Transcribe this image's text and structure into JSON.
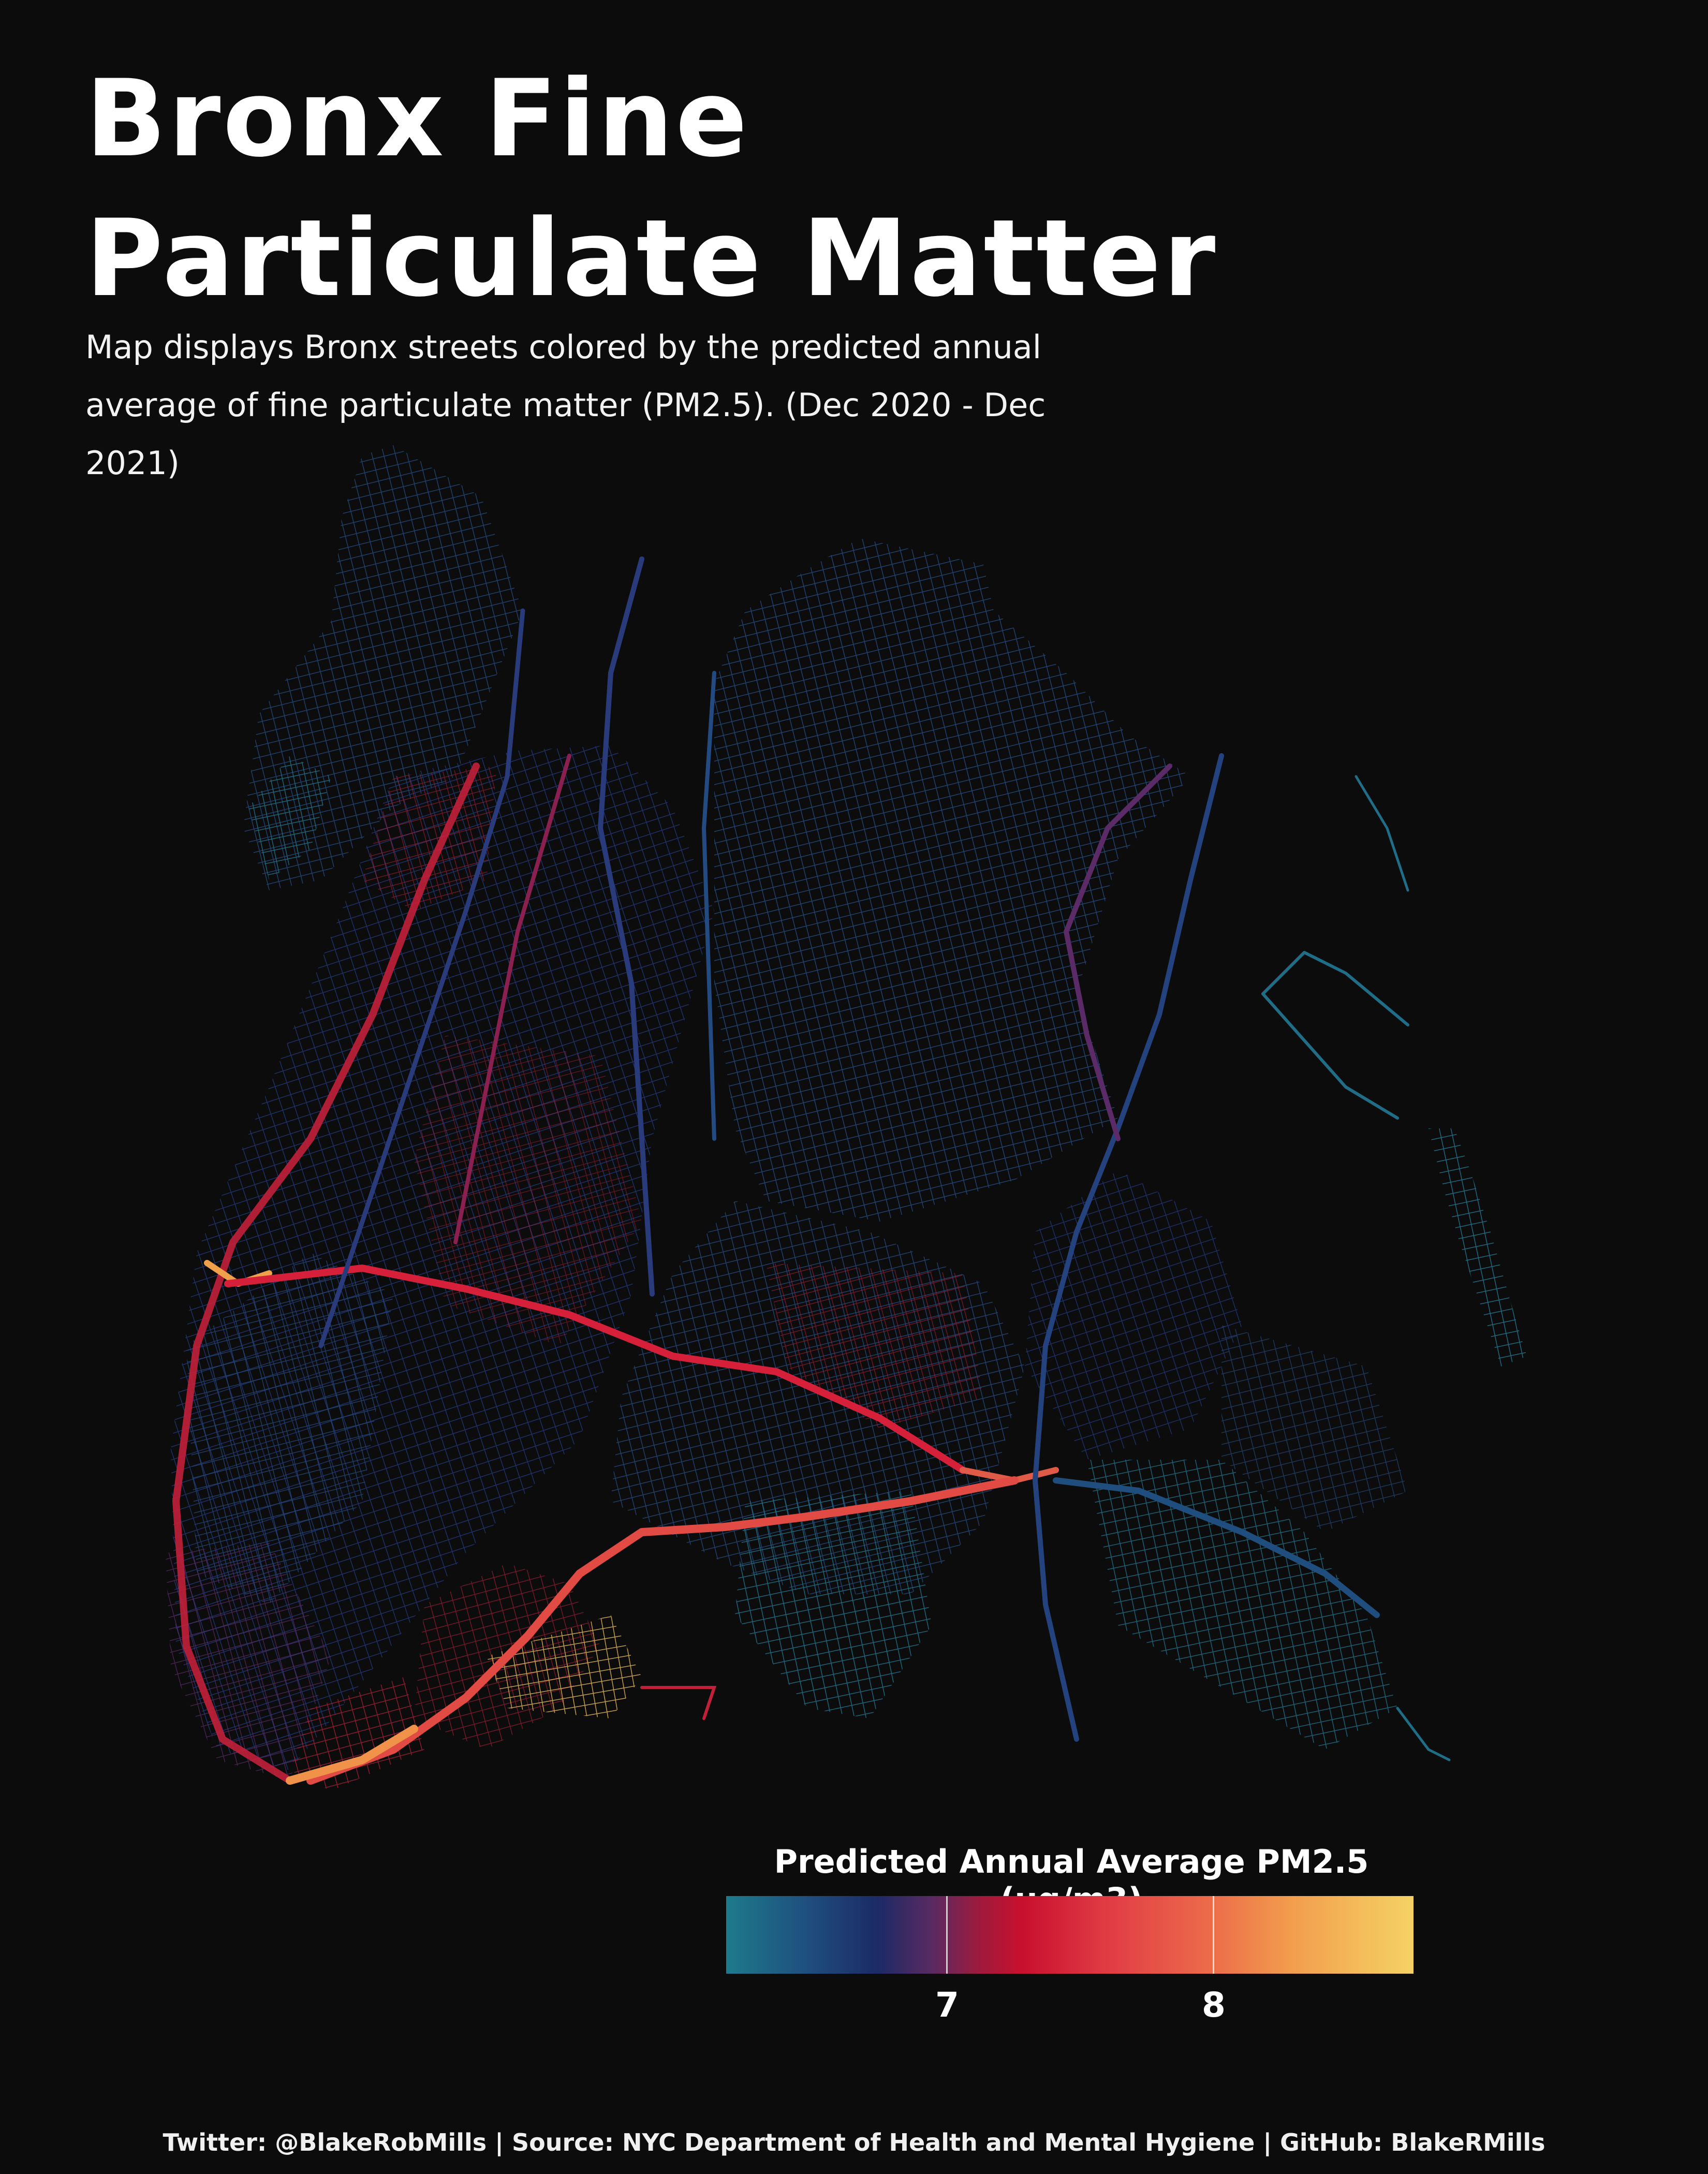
{
  "title": {
    "line1": "Bronx Fine",
    "line2": "Particulate Matter"
  },
  "subtitle": {
    "line1": "Map displays Bronx streets colored by the predicted annual",
    "line2": "average of fine particulate matter (PM2.5). (Dec 2020 - Dec 2021)"
  },
  "legend": {
    "title": "Predicted Annual Average PM2.5 (ug/m3)",
    "ticks": [
      {
        "label": "7",
        "value": 7
      },
      {
        "label": "8",
        "value": 8
      }
    ],
    "colors": {
      "low": "#1e7a8c",
      "mid_low": "#1c2a66",
      "mid": "#c8102e",
      "mid_high": "#ec6a4a",
      "high": "#f5d264"
    }
  },
  "caption": "Twitter: @BlakeRobMills | Source: NYC Department of Health and Mental Hygiene | GitHub: BlakeRMills",
  "map": {
    "subject": "Bronx streets",
    "background": "#0c0c0c"
  }
}
